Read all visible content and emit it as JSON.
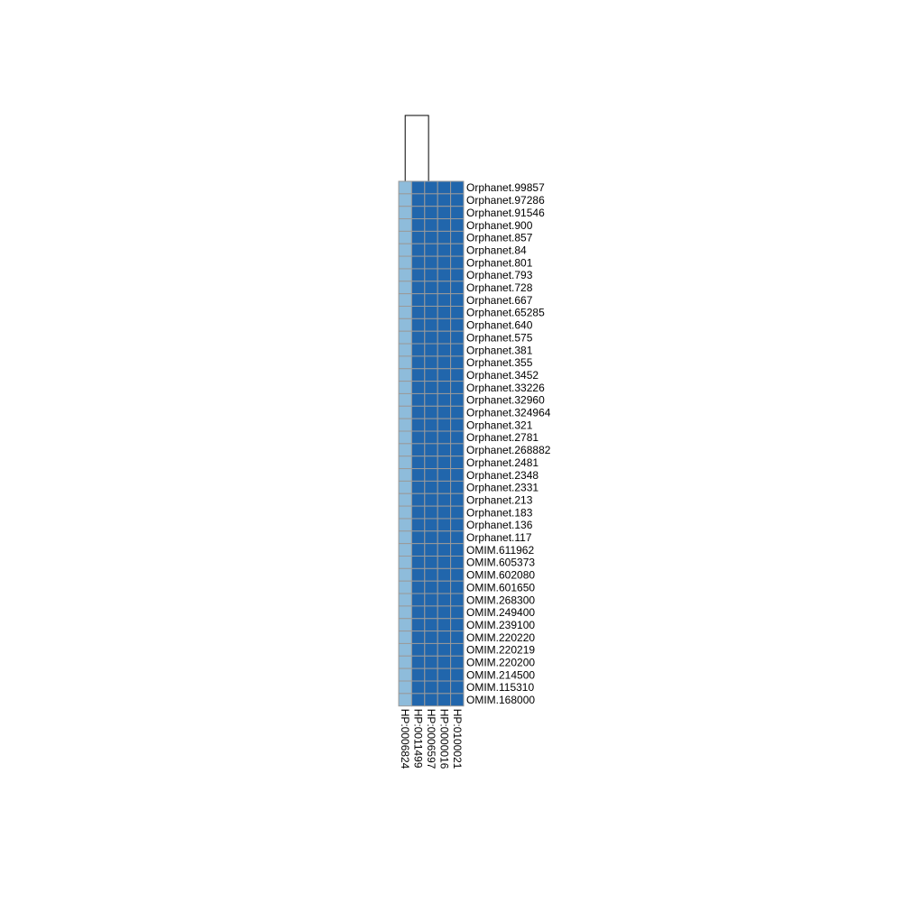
{
  "chart_data": {
    "type": "heatmap",
    "title": "",
    "xlabel": "",
    "ylabel": "",
    "legend": "none",
    "grid": true,
    "columns": [
      "HP:0006824",
      "HP:0011499",
      "HP:0006597",
      "HP:0000016",
      "HP:0100021"
    ],
    "rows": [
      "Orphanet.99857",
      "Orphanet.97286",
      "Orphanet.91546",
      "Orphanet.900",
      "Orphanet.857",
      "Orphanet.84",
      "Orphanet.801",
      "Orphanet.793",
      "Orphanet.728",
      "Orphanet.667",
      "Orphanet.65285",
      "Orphanet.640",
      "Orphanet.575",
      "Orphanet.381",
      "Orphanet.355",
      "Orphanet.3452",
      "Orphanet.33226",
      "Orphanet.32960",
      "Orphanet.324964",
      "Orphanet.321",
      "Orphanet.2781",
      "Orphanet.268882",
      "Orphanet.2481",
      "Orphanet.2348",
      "Orphanet.2331",
      "Orphanet.213",
      "Orphanet.183",
      "Orphanet.136",
      "Orphanet.117",
      "OMIM.611962",
      "OMIM.605373",
      "OMIM.602080",
      "OMIM.601650",
      "OMIM.268300",
      "OMIM.249400",
      "OMIM.239100",
      "OMIM.220220",
      "OMIM.220219",
      "OMIM.220200",
      "OMIM.214500",
      "OMIM.115310",
      "OMIM.168000"
    ],
    "column_values": [
      0.3,
      1,
      1,
      1,
      1
    ],
    "colors": {
      "low": "#8EBCDB",
      "high": "#2166AC",
      "cell_border": "#9A9A9A",
      "dendrogram": "#000000"
    },
    "column_dendrogram": {
      "present": true,
      "merge": [
        [
          0
        ],
        [
          1,
          2,
          3,
          4
        ]
      ]
    }
  }
}
